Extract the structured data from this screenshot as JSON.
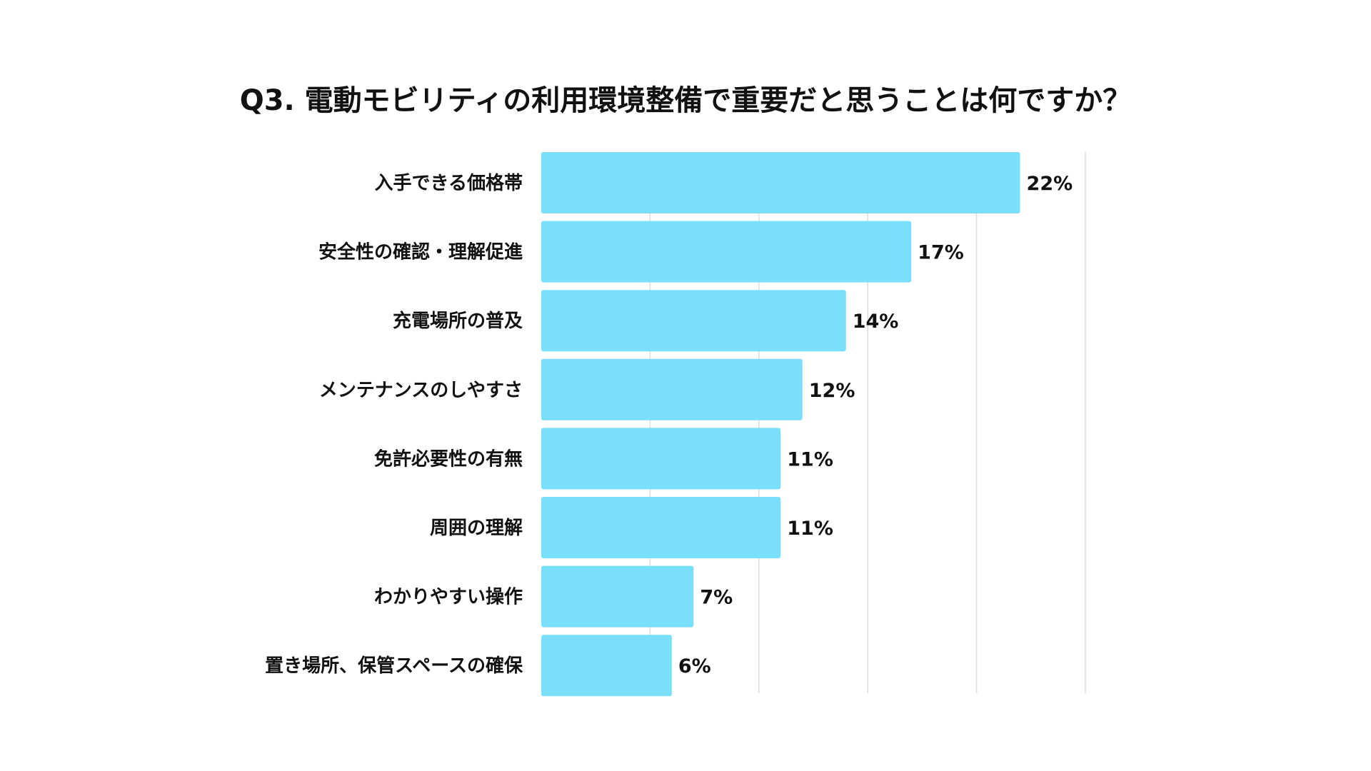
{
  "chart_data": {
    "type": "bar",
    "orientation": "horizontal",
    "title": "Q3. 電動モビリティの利用環境整備で重要だと思うことは何ですか？",
    "categories": [
      "入手できる価格帯",
      "安全性の確認・理解促進",
      "充電場所の普及",
      "メンテナンスのしやすさ",
      "免許必要性の有無",
      "周囲の理解",
      "わかりやすい操作",
      "置き場所、保管スペースの確保"
    ],
    "values": [
      22,
      17,
      14,
      12,
      11,
      11,
      7,
      6
    ],
    "value_labels": [
      "22%",
      "17%",
      "14%",
      "12%",
      "11%",
      "11%",
      "7%",
      "6%"
    ],
    "xlim": [
      0,
      25
    ],
    "grid_step": 5,
    "grid": true,
    "bar_color": "#7ADFFB",
    "grid_color": "#DDDDDD"
  }
}
